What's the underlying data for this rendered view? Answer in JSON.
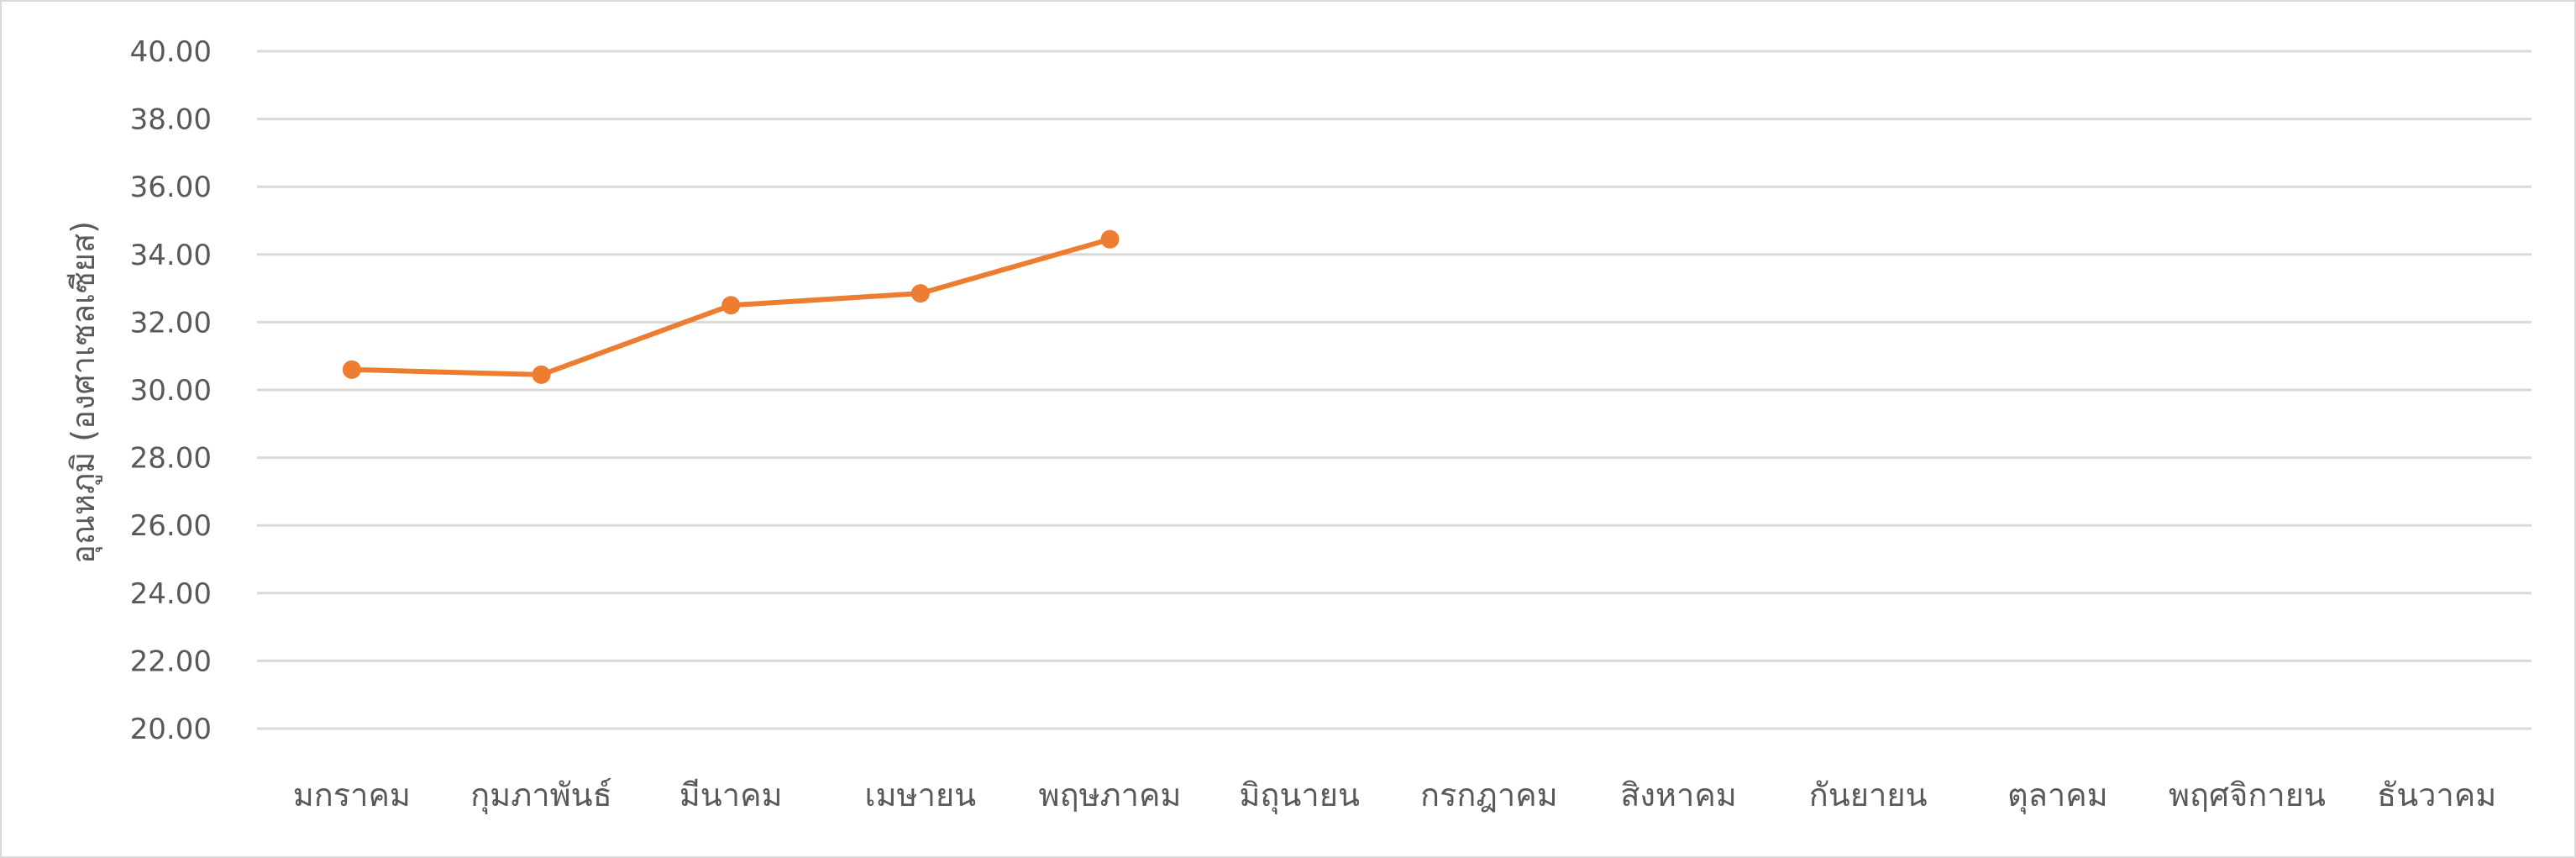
{
  "chart_data": {
    "type": "line",
    "categories": [
      "มกราคม",
      "กุมภาพันธ์",
      "มีนาคม",
      "เมษายน",
      "พฤษภาคม",
      "มิถุนายน",
      "กรกฎาคม",
      "สิงหาคม",
      "กันยายน",
      "ตุลาคม",
      "พฤศจิกายน",
      "ธันวาคม"
    ],
    "series": [
      {
        "values": [
          30.6,
          30.45,
          32.5,
          32.85,
          34.45,
          null,
          null,
          null,
          null,
          null,
          null,
          null
        ],
        "color": "#ED7D31"
      }
    ],
    "ylabel": "อุณหภูมิ (องศาเซลเซียส)",
    "ylim": [
      20,
      40
    ],
    "ytick_step": 2,
    "ytick_labels": [
      "20.00",
      "22.00",
      "24.00",
      "26.00",
      "28.00",
      "30.00",
      "32.00",
      "34.00",
      "36.00",
      "38.00",
      "40.00"
    ],
    "grid": true,
    "legend": "none"
  }
}
